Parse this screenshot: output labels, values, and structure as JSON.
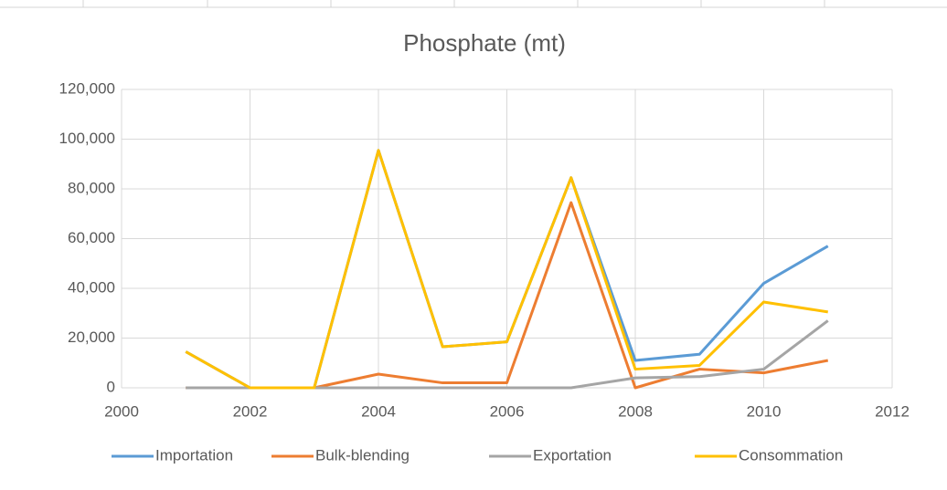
{
  "chart_data": {
    "type": "line",
    "title": "Phosphate (mt)",
    "x": [
      2001,
      2002,
      2003,
      2004,
      2005,
      2006,
      2007,
      2008,
      2009,
      2010,
      2011
    ],
    "series": [
      {
        "name": "Importation",
        "color": "#5b9bd5",
        "values": [
          14500,
          0,
          0,
          95500,
          16500,
          18500,
          84500,
          11000,
          13500,
          42000,
          57000
        ]
      },
      {
        "name": "Bulk-blending",
        "color": "#ed7d31",
        "values": [
          0,
          0,
          0,
          5500,
          2000,
          2000,
          74500,
          0,
          7500,
          6000,
          11000
        ]
      },
      {
        "name": "Exportation",
        "color": "#a5a5a5",
        "values": [
          0,
          0,
          0,
          0,
          0,
          0,
          0,
          4000,
          4500,
          7500,
          27000
        ]
      },
      {
        "name": "Consommation",
        "color": "#ffc000",
        "values": [
          14500,
          0,
          0,
          95500,
          16500,
          18500,
          84500,
          7500,
          9000,
          34500,
          30500
        ]
      }
    ],
    "xlim": [
      2000,
      2012
    ],
    "xticks": [
      2000,
      2002,
      2004,
      2006,
      2008,
      2010,
      2012
    ],
    "ylim": [
      0,
      120000
    ],
    "yticks": [
      0,
      {
        "value": 20000,
        "label": "20,000"
      },
      {
        "value": 40000,
        "label": "40,000"
      },
      {
        "value": 60000,
        "label": "60,000"
      },
      {
        "value": 80000,
        "label": "80,000"
      },
      {
        "value": 100000,
        "label": "100,000"
      },
      {
        "value": 120000,
        "label": "120,000"
      }
    ],
    "grid": true,
    "legend": "bottom"
  }
}
